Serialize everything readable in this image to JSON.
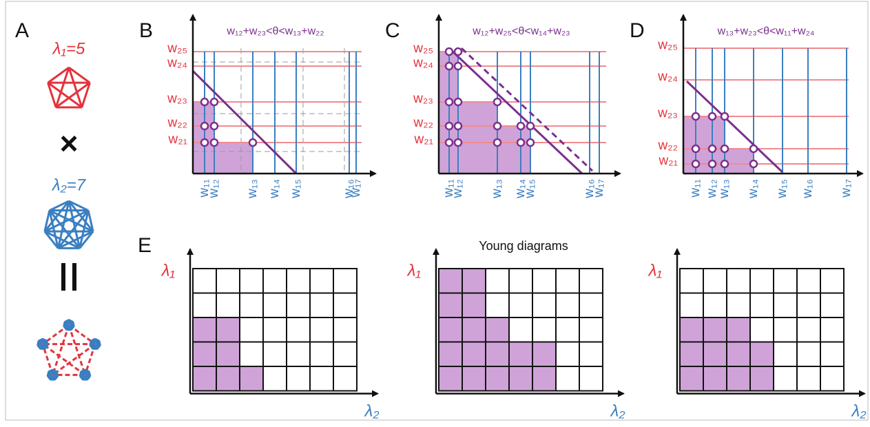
{
  "panel_a": {
    "label": "A",
    "lambda1": "λ₁=5",
    "lambda2": "λ₂=7"
  },
  "plots": [
    {
      "label": "B",
      "condition": "w₁₂+w₂₃<θ<w₁₃+w₂₂",
      "y_labels": [
        "w₂₅",
        "w₂₄",
        "w₂₃",
        "w₂₂",
        "w₂₁"
      ],
      "x_labels": [
        "w₁₁",
        "w₁₂",
        "w₁₃",
        "w₁₄",
        "w₁₅",
        "w₁₆",
        "w₁₇"
      ]
    },
    {
      "label": "C",
      "condition": "w₁₂+w₂₅<θ<w₁₄+w₂₃",
      "y_labels": [
        "w₂₅",
        "w₂₄",
        "w₂₃",
        "w₂₂",
        "w₂₁"
      ],
      "x_labels": [
        "w₁₁",
        "w₁₂",
        "w₁₃",
        "w₁₄",
        "w₁₅",
        "w₁₆",
        "w₁₇"
      ]
    },
    {
      "label": "D",
      "condition": "w₁₃+w₂₃<θ<w₁₁+w₂₄",
      "y_labels": [
        "w₂₅",
        "w₂₄",
        "w₂₃",
        "w₂₂",
        "w₂₁"
      ],
      "x_labels": [
        "w₁₁",
        "w₁₂",
        "w₁₃",
        "w₁₄",
        "w₁₅",
        "w₁₆",
        "w₁₇"
      ]
    }
  ],
  "panel_e": {
    "label": "E",
    "title": "Young diagrams",
    "y_axis_label": "λ₁",
    "x_axis_label": "λ₂"
  }
}
